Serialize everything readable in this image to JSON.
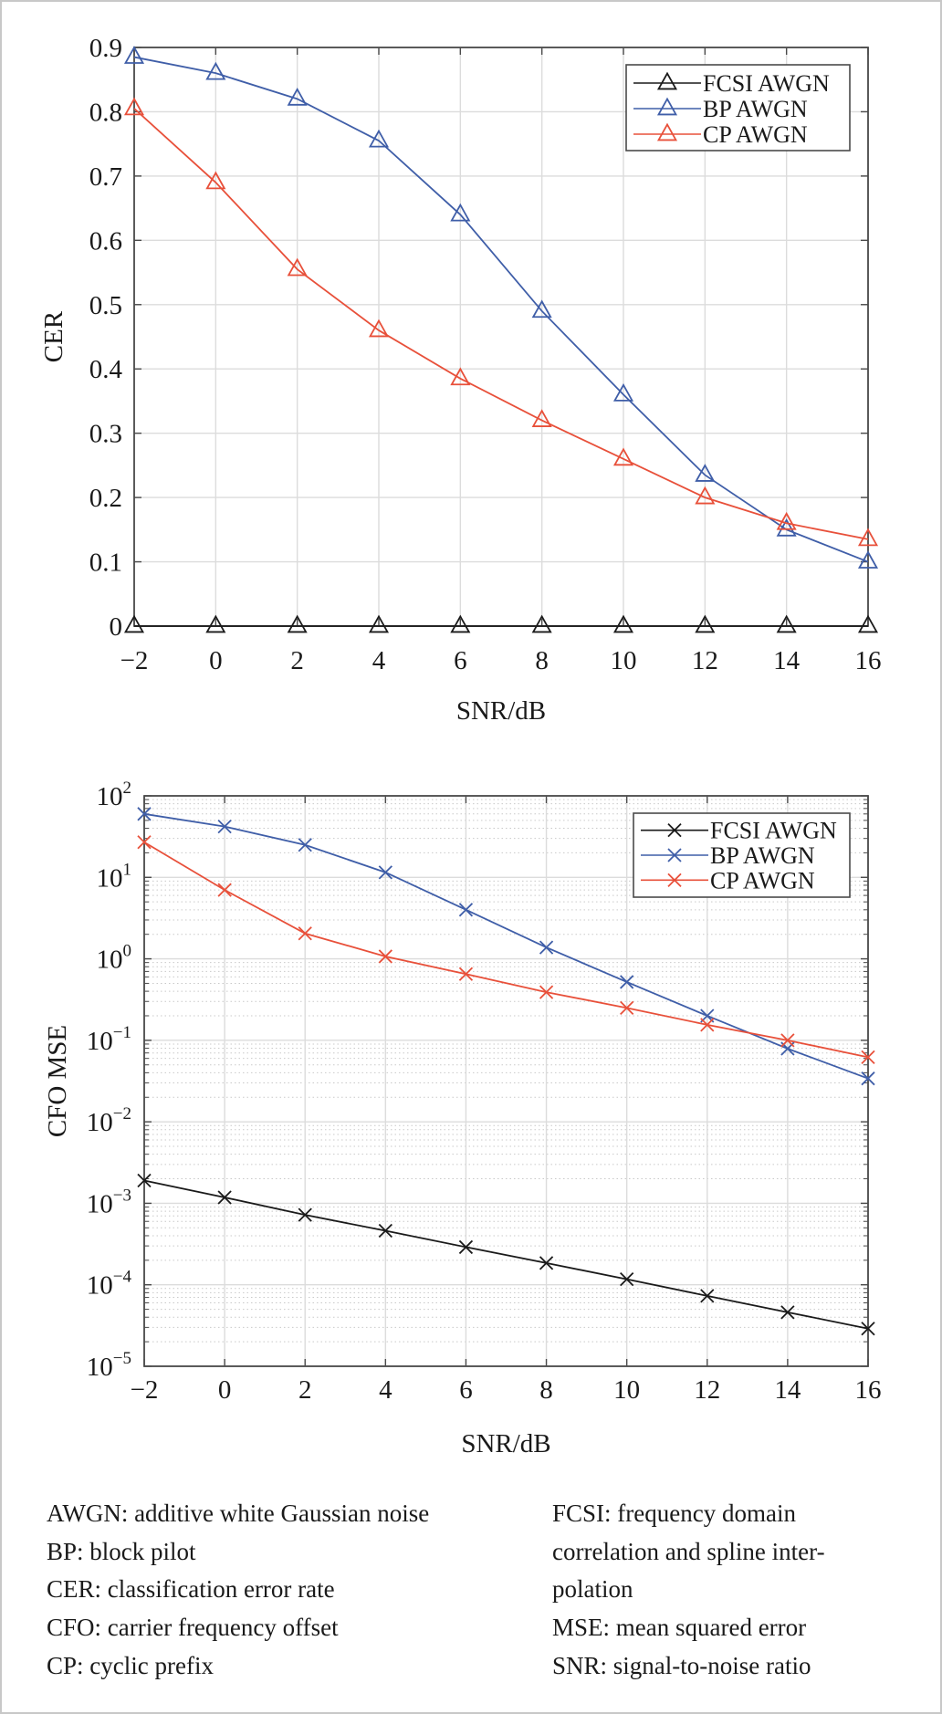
{
  "colors": {
    "fcsi": "#1a1a1a",
    "bp": "#3f5ea8",
    "cp": "#e8503a",
    "axis": "#4a4a4a",
    "grid": "#dcdcdc",
    "minor_grid": "#c9c9c9"
  },
  "chart_data": [
    {
      "type": "line",
      "scale": "linear",
      "marker": "triangle",
      "title": "",
      "xlabel": "SNR/dB",
      "ylabel": "CER",
      "xlim": [
        -2,
        16
      ],
      "ylim": [
        0,
        0.9
      ],
      "grid": true,
      "legend_position": "top-right",
      "x": [
        -2,
        0,
        2,
        4,
        6,
        8,
        10,
        12,
        14,
        16
      ],
      "x_tick_labels": [
        "−2",
        "0",
        "2",
        "4",
        "6",
        "8",
        "10",
        "12",
        "14",
        "16"
      ],
      "y_ticks": [
        0,
        0.1,
        0.2,
        0.3,
        0.4,
        0.5,
        0.6,
        0.7,
        0.8,
        0.9
      ],
      "y_tick_labels": [
        "0",
        "0.1",
        "0.2",
        "0.3",
        "0.4",
        "0.5",
        "0.6",
        "0.7",
        "0.8",
        "0.9"
      ],
      "series": [
        {
          "name": "FCSI AWGN",
          "key": "fcsi",
          "values": [
            0,
            0,
            0,
            0,
            0,
            0,
            0,
            0,
            0,
            0
          ]
        },
        {
          "name": "BP AWGN",
          "key": "bp",
          "values": [
            0.885,
            0.86,
            0.82,
            0.755,
            0.64,
            0.49,
            0.36,
            0.235,
            0.15,
            0.1
          ]
        },
        {
          "name": "CP AWGN",
          "key": "cp",
          "values": [
            0.805,
            0.69,
            0.555,
            0.46,
            0.385,
            0.32,
            0.26,
            0.2,
            0.16,
            0.135
          ]
        }
      ]
    },
    {
      "type": "line",
      "scale": "log",
      "marker": "x",
      "title": "",
      "xlabel": "SNR/dB",
      "ylabel": "CFO MSE",
      "xlim": [
        -2,
        16
      ],
      "ylim": [
        1e-05,
        100
      ],
      "grid": true,
      "legend_position": "top-right",
      "x": [
        -2,
        0,
        2,
        4,
        6,
        8,
        10,
        12,
        14,
        16
      ],
      "x_tick_labels": [
        "−2",
        "0",
        "2",
        "4",
        "6",
        "8",
        "10",
        "12",
        "14",
        "16"
      ],
      "y_tick_exponents": [
        2,
        1,
        0,
        -1,
        -2,
        -3,
        -4,
        -5
      ],
      "y_tick_labels": [
        {
          "base": "10",
          "exp": "2"
        },
        {
          "base": "10",
          "exp": "1"
        },
        {
          "base": "10",
          "exp": "0"
        },
        {
          "base": "10",
          "exp": "−1"
        },
        {
          "base": "10",
          "exp": "−2"
        },
        {
          "base": "10",
          "exp": "−3"
        },
        {
          "base": "10",
          "exp": "−4"
        },
        {
          "base": "10",
          "exp": "−5"
        }
      ],
      "series": [
        {
          "name": "FCSI AWGN",
          "key": "fcsi",
          "values": [
            0.0019,
            0.00118,
            0.00072,
            0.00046,
            0.00029,
            0.000185,
            0.000117,
            7.3e-05,
            4.6e-05,
            2.9e-05
          ]
        },
        {
          "name": "BP AWGN",
          "key": "bp",
          "values": [
            60,
            42,
            25,
            11.5,
            4.0,
            1.38,
            0.52,
            0.2,
            0.079,
            0.034
          ]
        },
        {
          "name": "CP AWGN",
          "key": "cp",
          "values": [
            27,
            7.0,
            2.05,
            1.07,
            0.65,
            0.39,
            0.25,
            0.155,
            0.1,
            0.062
          ]
        }
      ]
    }
  ],
  "caption": {
    "left": [
      "AWGN: additive white Gaussian noise",
      "BP: block pilot",
      "CER: classification error rate",
      "CFO: carrier frequency offset",
      "CP: cyclic prefix"
    ],
    "right": [
      "FCSI: frequency domain",
      "correlation and spline inter-",
      "polation",
      "MSE: mean squared error",
      "SNR: signal-to-noise ratio"
    ]
  }
}
